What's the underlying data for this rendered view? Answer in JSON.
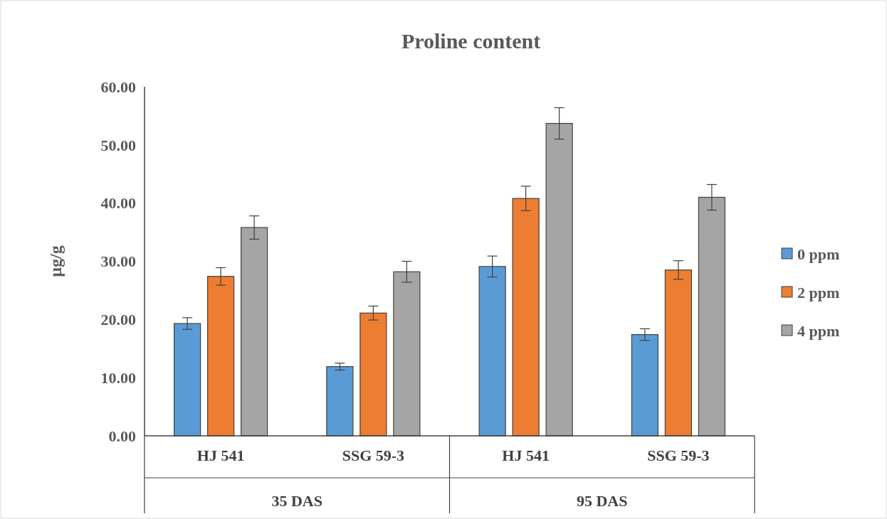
{
  "chart_data": {
    "type": "bar",
    "title": "Proline content",
    "ylabel": "µg/g",
    "categories": [
      "HJ 541",
      "SSG 59-3",
      "HJ 541",
      "SSG 59-3"
    ],
    "annotations": [
      "35 DAS",
      "95 DAS"
    ],
    "series": [
      {
        "name": "0 ppm",
        "color": "#5b9bd5",
        "values": [
          19.3,
          11.9,
          29.1,
          17.4
        ],
        "errors": [
          1,
          0.6,
          1.8,
          1
        ]
      },
      {
        "name": "2 ppm",
        "color": "#ed7d31",
        "values": [
          27.4,
          21.1,
          40.8,
          28.5
        ],
        "errors": [
          1.5,
          1.2,
          2.1,
          1.6
        ]
      },
      {
        "name": "4 ppm",
        "color": "#a5a5a5",
        "values": [
          35.8,
          28.2,
          53.7,
          41.0
        ],
        "errors": [
          2,
          1.8,
          2.7,
          2.2
        ]
      }
    ],
    "ylim": [
      0,
      60
    ],
    "yticks": [
      {
        "value": 0,
        "label": "0.00"
      },
      {
        "value": 10,
        "label": "10.00"
      },
      {
        "value": 20,
        "label": "20.00"
      },
      {
        "value": 30,
        "label": "30.00"
      },
      {
        "value": 40,
        "label": "40.00"
      },
      {
        "value": 50,
        "label": "50.00"
      },
      {
        "value": 60,
        "label": "60.00"
      }
    ],
    "grid": false,
    "legend": "right"
  }
}
